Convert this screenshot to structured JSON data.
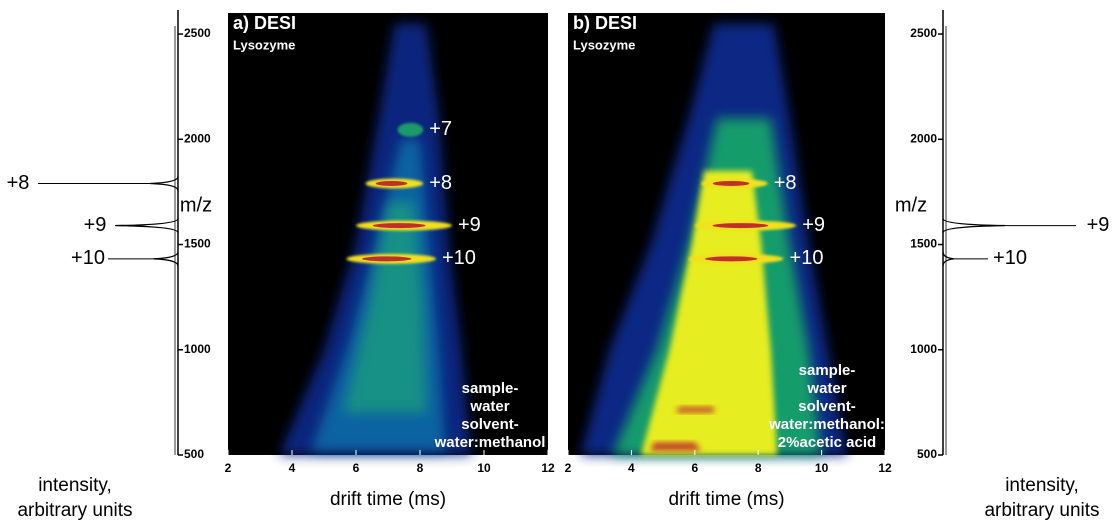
{
  "chart_data": [
    {
      "type": "spectrum",
      "side": "left",
      "xlabel": [
        "intensity,",
        "arbitrary units"
      ],
      "ylabel": "m/z",
      "ylim": [
        500,
        2600
      ],
      "yticks": [
        500,
        1000,
        1500,
        2000,
        2500
      ],
      "peaks": [
        {
          "label": "+8",
          "mz": 1790,
          "intensity": 45
        },
        {
          "label": "+9",
          "mz": 1590,
          "intensity": 100
        },
        {
          "label": "+10",
          "mz": 1432,
          "intensity": 40
        }
      ]
    },
    {
      "type": "heatmap",
      "variant": "narrow",
      "title": "a) DESI",
      "subtitle": "Lysozyme",
      "xlabel": "drift time (ms)",
      "xlim": [
        2,
        12
      ],
      "xticks": [
        2,
        4,
        6,
        8,
        10,
        12
      ],
      "ylim": [
        500,
        2600
      ],
      "bands": [
        {
          "label": "+7",
          "mz": 2045,
          "drift": [
            7.3,
            8.1
          ]
        },
        {
          "label": "+8",
          "mz": 1790,
          "drift": [
            6.3,
            8.1
          ]
        },
        {
          "label": "+9",
          "mz": 1590,
          "drift": [
            6.0,
            9.0
          ]
        },
        {
          "label": "+10",
          "mz": 1432,
          "drift": [
            5.7,
            8.5
          ]
        }
      ],
      "annotation": [
        "sample-",
        "water",
        "solvent-",
        "water:methanol"
      ]
    },
    {
      "type": "heatmap",
      "variant": "wide",
      "title": "b) DESI",
      "subtitle": "Lysozyme",
      "xlabel": "drift time (ms)",
      "xlim": [
        2,
        12
      ],
      "xticks": [
        2,
        4,
        6,
        8,
        10,
        12
      ],
      "ylim": [
        500,
        2600
      ],
      "bands": [
        {
          "label": "+8",
          "mz": 1790,
          "drift": [
            6.2,
            8.3
          ]
        },
        {
          "label": "+9",
          "mz": 1590,
          "drift": [
            6.0,
            9.2
          ]
        },
        {
          "label": "+10",
          "mz": 1432,
          "drift": [
            5.8,
            8.8
          ]
        }
      ],
      "annotation": [
        "sample-",
        "water",
        "solvent-",
        "water:methanol:",
        "2%acetic acid"
      ]
    },
    {
      "type": "spectrum",
      "side": "right",
      "xlabel": [
        "intensity,",
        "arbitrary units"
      ],
      "ylabel": "m/z",
      "ylim": [
        500,
        2600
      ],
      "yticks": [
        500,
        1000,
        1500,
        2000,
        2500
      ],
      "peaks": [
        {
          "label": "+9",
          "mz": 1590,
          "intensity": 100
        },
        {
          "label": "+10",
          "mz": 1432,
          "intensity": 18
        }
      ]
    }
  ]
}
